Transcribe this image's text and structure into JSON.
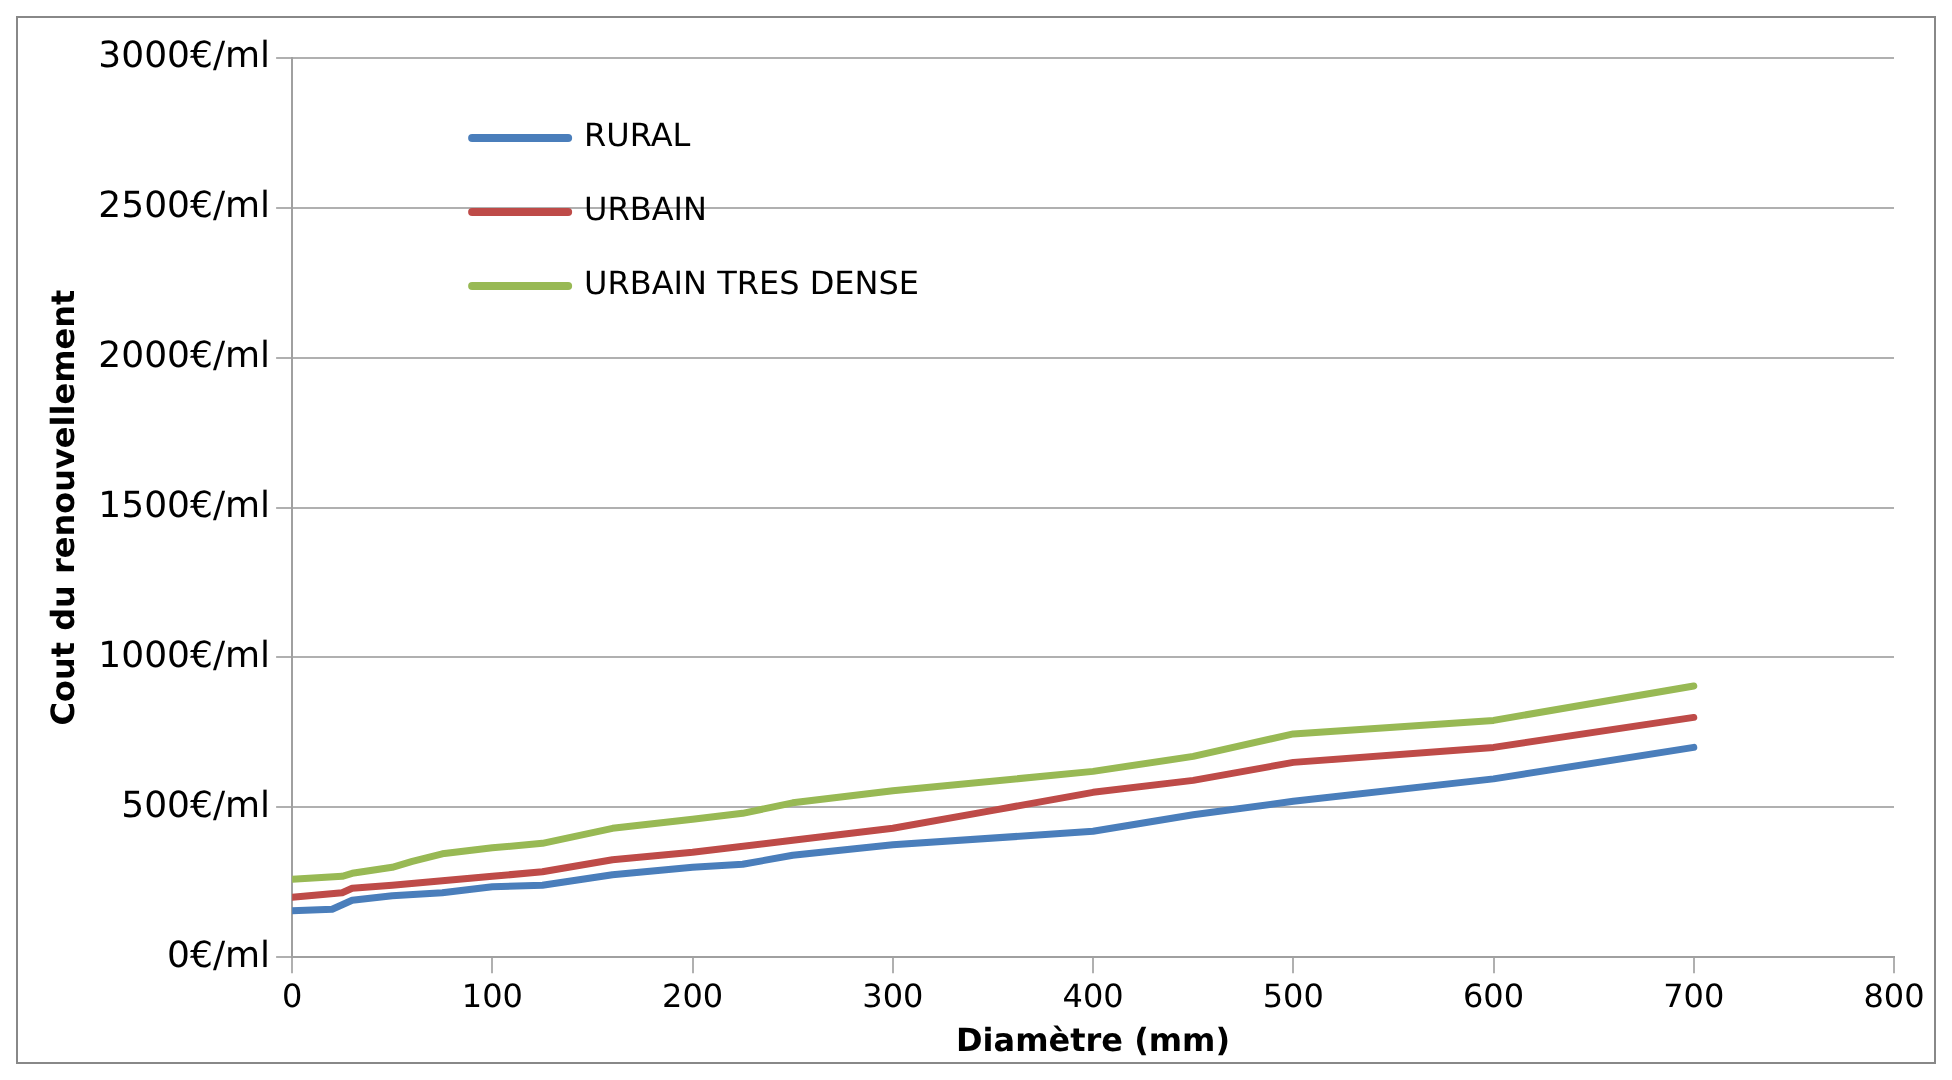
{
  "chart_data": {
    "type": "line",
    "xlabel": "Diamètre (mm)",
    "ylabel": "Cout du renouvellement",
    "xlim": [
      0,
      800
    ],
    "xticks": [
      0,
      100,
      200,
      300,
      400,
      500,
      600,
      700,
      800
    ],
    "ylim": [
      0,
      3000
    ],
    "yticks": [
      {
        "value": 0,
        "label": "0€/ml"
      },
      {
        "value": 500,
        "label": "500€/ml"
      },
      {
        "value": 1000,
        "label": "1000€/ml"
      },
      {
        "value": 1500,
        "label": "1500€/ml"
      },
      {
        "value": 2000,
        "label": "2000€/ml"
      },
      {
        "value": 2500,
        "label": "2500€/ml"
      },
      {
        "value": 3000,
        "label": "3000€/ml"
      }
    ],
    "grid": "y",
    "legend": "top left",
    "marker": "none",
    "series": [
      {
        "name": "RURAL",
        "color": "#4a7ebb",
        "x": [
          0,
          20,
          30,
          50,
          75,
          100,
          125,
          160,
          200,
          225,
          250,
          300,
          400,
          450,
          500,
          600,
          700
        ],
        "values": [
          155,
          160,
          190,
          205,
          215,
          235,
          240,
          275,
          300,
          310,
          340,
          375,
          420,
          475,
          520,
          595,
          700
        ]
      },
      {
        "name": "URBAIN",
        "color": "#be4b48",
        "x": [
          0,
          25,
          30,
          50,
          75,
          100,
          125,
          160,
          200,
          250,
          300,
          350,
          400,
          450,
          500,
          600,
          700
        ],
        "values": [
          200,
          215,
          230,
          240,
          255,
          270,
          285,
          325,
          350,
          390,
          430,
          490,
          550,
          590,
          650,
          700,
          800
        ]
      },
      {
        "name": "URBAIN TRES DENSE",
        "color": "#98b954",
        "x": [
          0,
          25,
          30,
          50,
          60,
          75,
          100,
          125,
          160,
          200,
          225,
          250,
          300,
          400,
          450,
          500,
          600,
          700
        ],
        "values": [
          260,
          270,
          280,
          300,
          320,
          345,
          365,
          380,
          430,
          460,
          480,
          515,
          555,
          620,
          670,
          745,
          790,
          905
        ]
      }
    ]
  }
}
